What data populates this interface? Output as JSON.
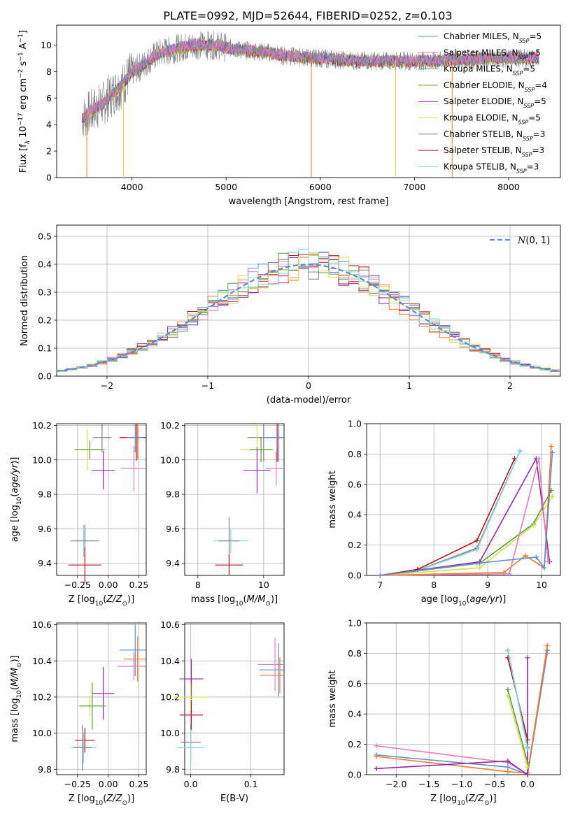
{
  "title": "PLATE=0992, MJD=52644, FIBERID=0252, z=0.103",
  "colors": {
    "blue": "#5f8dd3",
    "orange": "#f57a29",
    "green": "#5c9b3a",
    "red": "#b5121b",
    "purple": "#9128a6",
    "pink": "#e87bbd",
    "gray": "#7f7f7f",
    "yellow": "#d4e04a",
    "cyan": "#7fd7dc"
  },
  "chart_data": [
    {
      "id": "spectrum",
      "type": "line",
      "xlabel": "wavelength [Angstrom, rest frame]",
      "ylabel": "Flux [f_λ 10^-17 erg cm^-2 s^-1 A^-1]",
      "xlim": [
        3200,
        8550
      ],
      "ylim": [
        0,
        11.5
      ],
      "xticks": [
        "4000",
        "5000",
        "6000",
        "7000",
        "8000"
      ],
      "yticks": [
        "0",
        "2",
        "4",
        "6",
        "8",
        "10"
      ],
      "legend_position": "top-right",
      "legend": [
        "Chabrier MILES, N_SSP=5",
        "Salpeter MILES, N_SSP=5",
        "Kroupa MILES, N_SSP=5",
        "Chabrier ELODIE, N_SSP=4",
        "Salpeter ELODIE, N_SSP=5",
        "Kroupa ELODIE, N_SSP=5",
        "Chabrier STELIB, N_SSP=3",
        "Salpeter STELIB, N_SSP=3",
        "Kroupa STELIB, N_SSP=3"
      ],
      "legend_colors": [
        "blue",
        "pink",
        "gray",
        "green",
        "purple",
        "yellow",
        "gray",
        "red",
        "cyan"
      ],
      "continuum": {
        "x": [
          3500,
          3600,
          3700,
          3800,
          3900,
          4000,
          4100,
          4200,
          4300,
          4400,
          4500,
          4600,
          4700,
          4800,
          4900,
          5000,
          5200,
          5400,
          5600,
          5800,
          6000,
          6200,
          6400,
          6600,
          6800,
          7000,
          7200,
          7400,
          7600,
          7800,
          8000,
          8200,
          8300
        ],
        "y": [
          4.6,
          5.2,
          5.6,
          6.4,
          7.0,
          8.0,
          8.4,
          9.0,
          9.4,
          9.6,
          9.8,
          9.9,
          10.0,
          10.0,
          10.0,
          9.8,
          9.6,
          9.5,
          9.2,
          9.1,
          9.0,
          8.9,
          8.8,
          8.8,
          8.8,
          8.8,
          8.8,
          8.9,
          8.9,
          9.0,
          9.0,
          9.0,
          9.0
        ]
      }
    },
    {
      "id": "residuals",
      "type": "bar",
      "xlabel": "(data-model)/error",
      "ylabel": "Normed distribution",
      "xlim": [
        -2.5,
        2.5
      ],
      "ylim": [
        0,
        0.54
      ],
      "xticks": [
        "−2",
        "−1",
        "0",
        "1",
        "2"
      ],
      "yticks": [
        "0.0",
        "0.1",
        "0.2",
        "0.3",
        "0.4",
        "0.5"
      ],
      "legend": [
        "N(0,1)"
      ],
      "legend_position": "top-right",
      "bin_width": 0.1
    },
    {
      "id": "age-vs-Z",
      "type": "scatter",
      "xlabel": "Z [log10(Z/Z⊙)]",
      "ylabel": "age  [log10(age/yr)]",
      "xlim": [
        -0.42,
        0.31
      ],
      "ylim": [
        9.33,
        10.21
      ],
      "xticks": [
        "−0.25",
        "0.00",
        "0.25"
      ],
      "yticks": [
        "9.4",
        "9.6",
        "9.8",
        "10.0",
        "10.2"
      ],
      "points": [
        {
          "x": 0.24,
          "y": 10.13,
          "c": "orange"
        },
        {
          "x": 0.23,
          "y": 10.13,
          "c": "red"
        },
        {
          "x": -0.05,
          "y": 10.13,
          "c": "gray"
        },
        {
          "x": 0.21,
          "y": 9.95,
          "c": "pink"
        },
        {
          "x": -0.17,
          "y": 10.06,
          "c": "yellow"
        },
        {
          "x": -0.15,
          "y": 10.06,
          "c": "green"
        },
        {
          "x": -0.04,
          "y": 9.94,
          "c": "purple"
        },
        {
          "x": -0.2,
          "y": 9.53,
          "c": "cyan"
        },
        {
          "x": -0.19,
          "y": 9.53,
          "c": "gray"
        },
        {
          "x": -0.19,
          "y": 9.39,
          "c": "red"
        },
        {
          "x": 0.22,
          "y": 10.13,
          "c": "blue"
        }
      ]
    },
    {
      "id": "age-vs-mass",
      "type": "scatter",
      "xlabel": "mass [log10(M/M⊙)]",
      "ylabel": "",
      "xlim": [
        7.6,
        10.62
      ],
      "ylim": [
        9.33,
        10.21
      ],
      "xticks": [
        "8",
        "10"
      ],
      "yticks": [
        "9.4",
        "9.6",
        "9.8",
        "10.0",
        "10.2"
      ],
      "points": [
        {
          "x": 10.46,
          "y": 10.13,
          "c": "orange"
        },
        {
          "x": 10.41,
          "y": 10.13,
          "c": "red"
        },
        {
          "x": 10.0,
          "y": 10.13,
          "c": "gray"
        },
        {
          "x": 10.38,
          "y": 9.95,
          "c": "pink"
        },
        {
          "x": 9.8,
          "y": 10.06,
          "c": "yellow"
        },
        {
          "x": 9.92,
          "y": 10.06,
          "c": "green"
        },
        {
          "x": 9.8,
          "y": 9.94,
          "c": "purple"
        },
        {
          "x": 9.0,
          "y": 9.53,
          "c": "cyan"
        },
        {
          "x": 8.95,
          "y": 9.53,
          "c": "gray"
        },
        {
          "x": 8.95,
          "y": 9.39,
          "c": "red"
        },
        {
          "x": 10.46,
          "y": 10.13,
          "c": "blue"
        }
      ]
    },
    {
      "id": "massweight-vs-age",
      "type": "line",
      "xlabel": "age  [log10(age/yr)]",
      "ylabel": "mass weight",
      "xlim": [
        6.75,
        10.35
      ],
      "ylim": [
        0,
        1.0
      ],
      "xticks": [
        "7",
        "8",
        "9",
        "10"
      ],
      "yticks": [
        "0.0",
        "0.2",
        "0.4",
        "0.6",
        "0.8",
        "1.0"
      ],
      "series": [
        {
          "c": "red",
          "x": [
            7.0,
            7.7,
            8.8,
            9.5
          ],
          "y": [
            0.0,
            0.04,
            0.23,
            0.77
          ]
        },
        {
          "c": "gray",
          "x": [
            7.0,
            7.6,
            8.8,
            9.6
          ],
          "y": [
            0.0,
            0.02,
            0.18,
            0.82
          ]
        },
        {
          "c": "cyan",
          "x": [
            7.0,
            7.6,
            8.8,
            9.6
          ],
          "y": [
            0.0,
            0.02,
            0.17,
            0.82
          ]
        },
        {
          "c": "purple",
          "x": [
            7.0,
            8.85,
            9.9,
            10.15
          ],
          "y": [
            0.0,
            0.09,
            0.77,
            0.09
          ]
        },
        {
          "c": "green",
          "x": [
            7.0,
            8.85,
            9.85,
            10.18
          ],
          "y": [
            0.0,
            0.08,
            0.34,
            0.56
          ]
        },
        {
          "c": "yellow",
          "x": [
            7.0,
            8.85,
            9.85,
            10.2
          ],
          "y": [
            0.0,
            0.05,
            0.33,
            0.52
          ]
        },
        {
          "c": "pink",
          "x": [
            7.0,
            9.4,
            9.95,
            10.12
          ],
          "y": [
            0.0,
            0.01,
            0.77,
            0.09
          ]
        },
        {
          "c": "orange",
          "x": [
            7.0,
            9.3,
            9.7,
            10.05,
            10.18
          ],
          "y": [
            0.0,
            0.02,
            0.13,
            0.05,
            0.85
          ]
        },
        {
          "c": "blue",
          "x": [
            7.0,
            8.8,
            9.9,
            10.05,
            10.2
          ],
          "y": [
            0.0,
            0.08,
            0.12,
            0.05,
            0.81
          ]
        }
      ]
    },
    {
      "id": "mass-vs-Z",
      "type": "scatter",
      "xlabel": "Z [log10(Z/Z⊙)]",
      "ylabel": "mass [log10(M/M⊙)]",
      "xlim": [
        -0.42,
        0.31
      ],
      "ylim": [
        9.77,
        10.61
      ],
      "xticks": [
        "−0.25",
        "0.00",
        "0.25"
      ],
      "yticks": [
        "9.8",
        "10.0",
        "10.2",
        "10.4",
        "10.6"
      ],
      "points": [
        {
          "x": 0.22,
          "y": 10.46,
          "c": "blue"
        },
        {
          "x": 0.24,
          "y": 10.41,
          "c": "orange"
        },
        {
          "x": 0.21,
          "y": 10.37,
          "c": "pink"
        },
        {
          "x": -0.04,
          "y": 10.22,
          "c": "purple"
        },
        {
          "x": -0.15,
          "y": 10.15,
          "c": "yellow"
        },
        {
          "x": -0.13,
          "y": 10.15,
          "c": "green"
        },
        {
          "x": -0.19,
          "y": 9.96,
          "c": "red"
        },
        {
          "x": -0.2,
          "y": 9.92,
          "c": "cyan"
        },
        {
          "x": -0.21,
          "y": 9.92,
          "c": "gray"
        }
      ]
    },
    {
      "id": "mass-vs-EBV",
      "type": "scatter",
      "xlabel": "E(B-V)",
      "ylabel": "",
      "xlim": [
        -0.01,
        0.155
      ],
      "ylim": [
        9.77,
        10.61
      ],
      "xticks": [
        "0.0",
        "0.1"
      ],
      "yticks": [
        "9.8",
        "10.0",
        "10.2",
        "10.4",
        "10.6"
      ],
      "points": [
        {
          "x": 0.14,
          "y": 10.38,
          "c": "pink"
        },
        {
          "x": 0.146,
          "y": 10.35,
          "c": "blue"
        },
        {
          "x": 0.148,
          "y": 10.32,
          "c": "orange"
        },
        {
          "x": 0.001,
          "y": 10.3,
          "c": "purple"
        },
        {
          "x": 0.0,
          "y": 10.2,
          "c": "yellow"
        },
        {
          "x": 0.001,
          "y": 10.1,
          "c": "red"
        },
        {
          "x": 0.0,
          "y": 9.95,
          "c": "gray"
        },
        {
          "x": 0.0,
          "y": 9.92,
          "c": "cyan"
        }
      ]
    },
    {
      "id": "massweight-vs-Z",
      "type": "line",
      "xlabel": "Z [log10(Z/Z⊙)]",
      "ylabel": "mass weight",
      "xlim": [
        -2.45,
        0.5
      ],
      "ylim": [
        0,
        1.0
      ],
      "xticks": [
        "−2.0",
        "−1.5",
        "−1.0",
        "−0.5",
        "0.0"
      ],
      "yticks": [
        "0.0",
        "0.2",
        "0.4",
        "0.6",
        "0.8",
        "1.0"
      ],
      "series": [
        {
          "c": "pink",
          "x": [
            -2.3,
            -0.3,
            0.0,
            0.3
          ],
          "y": [
            0.19,
            0.08,
            0.0,
            0.8
          ]
        },
        {
          "c": "blue",
          "x": [
            -2.3,
            -0.3,
            0.0,
            0.3
          ],
          "y": [
            0.13,
            0.05,
            0.0,
            0.82
          ]
        },
        {
          "c": "orange",
          "x": [
            -2.3,
            -0.3,
            0.0,
            0.3
          ],
          "y": [
            0.12,
            0.02,
            0.01,
            0.85
          ]
        },
        {
          "c": "purple",
          "x": [
            -2.3,
            -0.3,
            0.0,
            0.0
          ],
          "y": [
            0.04,
            0.09,
            0.0,
            0.77
          ]
        },
        {
          "c": "red",
          "x": [
            -0.3,
            0.0
          ],
          "y": [
            0.77,
            0.23
          ]
        },
        {
          "c": "gray",
          "x": [
            -0.3,
            0.0
          ],
          "y": [
            0.82,
            0.18
          ]
        },
        {
          "c": "cyan",
          "x": [
            -0.3,
            0.0
          ],
          "y": [
            0.82,
            0.17
          ]
        },
        {
          "c": "green",
          "x": [
            -0.3,
            0.0
          ],
          "y": [
            0.56,
            0.08
          ]
        },
        {
          "c": "yellow",
          "x": [
            -0.3,
            0.0
          ],
          "y": [
            0.52,
            0.05
          ]
        }
      ]
    }
  ]
}
